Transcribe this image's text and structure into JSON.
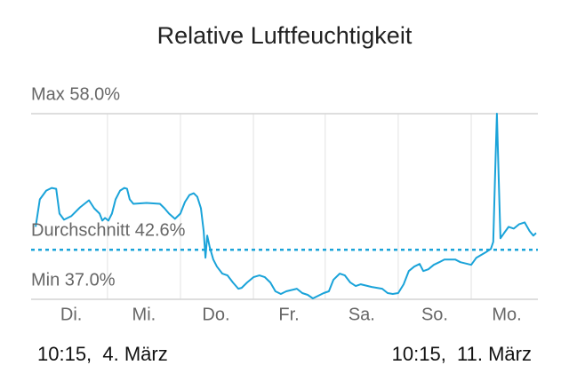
{
  "chart_data": {
    "type": "line",
    "title": "Relative Luftfeuchtigkeit",
    "range_labels": [
      "10:15,  4. März",
      "10:15,  11. März"
    ],
    "xlim": [
      0,
      168
    ],
    "ylim": [
      37,
      58
    ],
    "xticks": [
      {
        "value": 13.3,
        "label": "Di."
      },
      {
        "value": 37.4,
        "label": "Mi."
      },
      {
        "value": 61.3,
        "label": "Do."
      },
      {
        "value": 85.5,
        "label": "Fr."
      },
      {
        "value": 109.6,
        "label": "Sa."
      },
      {
        "value": 133.8,
        "label": "So."
      },
      {
        "value": 157.7,
        "label": "Mo."
      }
    ],
    "xgrid": [
      25.3,
      49.5,
      73.7,
      97.5,
      121.7,
      145.9
    ],
    "reference_lines": [
      {
        "label": "Max 58.0%",
        "value": 58.0,
        "style": "solid"
      },
      {
        "label": "Durchschnitt 42.6%",
        "value": 42.6,
        "style": "dashed"
      },
      {
        "label": "Min 37.0%",
        "value": 37.0,
        "style": "solid"
      }
    ],
    "series": [
      {
        "color": "#1aa3d9",
        "x": [
          1.5,
          2.9,
          5.0,
          6.8,
          8.3,
          9.4,
          10.9,
          13.3,
          16.2,
          19.2,
          20.9,
          22.7,
          23.6,
          24.5,
          25.6,
          26.8,
          28.0,
          29.5,
          30.9,
          31.8,
          32.7,
          33.9,
          38.3,
          42.7,
          44.2,
          45.7,
          47.7,
          49.5,
          51.0,
          52.5,
          53.9,
          55.1,
          56.3,
          57.2,
          57.8,
          58.4,
          59.2,
          60.4,
          61.6,
          63.4,
          65.1,
          66.9,
          68.7,
          69.8,
          71.6,
          73.7,
          75.7,
          77.5,
          79.3,
          81.0,
          82.8,
          84.6,
          88.1,
          89.9,
          91.7,
          93.4,
          95.2,
          97.0,
          98.7,
          100.2,
          102.3,
          104.0,
          105.8,
          107.6,
          109.3,
          112.9,
          116.4,
          118.2,
          119.9,
          121.7,
          123.5,
          125.2,
          127.0,
          128.8,
          130.0,
          131.7,
          133.5,
          135.3,
          137.0,
          140.6,
          142.3,
          145.9,
          147.6,
          150.6,
          152.4,
          153.2,
          153.8,
          154.4,
          155.0,
          155.6,
          156.8,
          158.3,
          160.0,
          161.8,
          163.6,
          165.3,
          166.5,
          167.4
        ],
        "values": [
          45.2,
          48.3,
          49.3,
          49.6,
          49.5,
          46.7,
          46.0,
          46.4,
          47.4,
          48.2,
          47.3,
          46.7,
          45.9,
          46.2,
          45.9,
          46.7,
          48.3,
          49.3,
          49.6,
          49.5,
          48.3,
          47.8,
          47.9,
          47.8,
          47.3,
          46.7,
          46.1,
          46.7,
          48.0,
          48.8,
          49.0,
          48.6,
          47.3,
          44.7,
          41.7,
          44.2,
          42.9,
          41.5,
          40.7,
          39.9,
          39.7,
          38.9,
          38.2,
          38.3,
          38.9,
          39.5,
          39.7,
          39.5,
          38.9,
          37.9,
          37.6,
          37.9,
          38.2,
          37.7,
          37.5,
          37.1,
          37.4,
          37.7,
          37.9,
          39.2,
          39.9,
          39.7,
          38.9,
          38.5,
          38.7,
          38.4,
          38.2,
          37.7,
          37.6,
          37.7,
          38.7,
          40.2,
          40.7,
          41.0,
          40.2,
          40.4,
          40.9,
          41.2,
          41.5,
          41.5,
          41.2,
          40.9,
          41.7,
          42.3,
          42.7,
          43.5,
          50.8,
          58.0,
          50.8,
          43.9,
          44.5,
          45.2,
          45.0,
          45.5,
          45.7,
          44.7,
          44.2,
          44.5
        ]
      }
    ]
  }
}
